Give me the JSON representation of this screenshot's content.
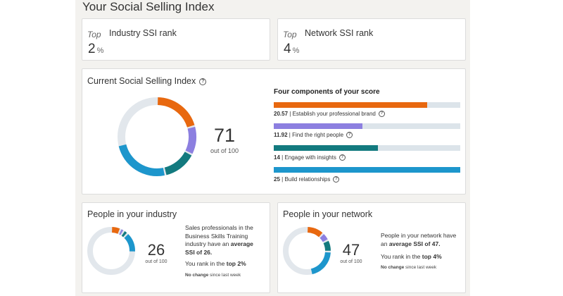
{
  "page": {
    "title": "Your Social Selling Index"
  },
  "industry_rank": {
    "top_label": "Top",
    "label": "Industry SSI rank",
    "value": "2",
    "unit": "%"
  },
  "network_rank": {
    "top_label": "Top",
    "label": "Network SSI rank",
    "value": "4",
    "unit": "%"
  },
  "ssi": {
    "title": "Current Social Selling Index",
    "score": "71",
    "out_of": "out of 100",
    "components_heading": "Four components of your score",
    "components": [
      {
        "value": "20.57",
        "label": "Establish your professional brand",
        "score": 20.57,
        "max": 25,
        "color": "#e8680f"
      },
      {
        "value": "11.92",
        "label": "Find the right people",
        "score": 11.92,
        "max": 25,
        "color": "#8c7fe0"
      },
      {
        "value": "14",
        "label": "Engage with insights",
        "score": 14,
        "max": 25,
        "color": "#137a7f"
      },
      {
        "value": "25",
        "label": "Build relationships",
        "score": 25,
        "max": 25,
        "color": "#1d96cc"
      }
    ],
    "track_color": "#e2e7ec"
  },
  "industry": {
    "title": "People in your industry",
    "score": "26",
    "out_of": "out of 100",
    "desc_1": "Sales professionals in the Business Skills Training industry have an ",
    "desc_bold": "average SSI of 26.",
    "rank_pre": "You rank in the ",
    "rank_bold": "top 2%",
    "change_bold": "No change",
    "change_rest": " since last week",
    "components": [
      6.5,
      2.5,
      3.0,
      14.0
    ]
  },
  "network": {
    "title": "People in your network",
    "score": "47",
    "out_of": "out of 100",
    "desc_1": "People in your network have an ",
    "desc_bold": "average SSI of 47.",
    "rank_pre": "You rank in the ",
    "rank_bold": "top 4%",
    "change_bold": "No change",
    "change_rest": " since last week",
    "components": [
      12.0,
      5.5,
      8.0,
      21.5
    ]
  }
}
